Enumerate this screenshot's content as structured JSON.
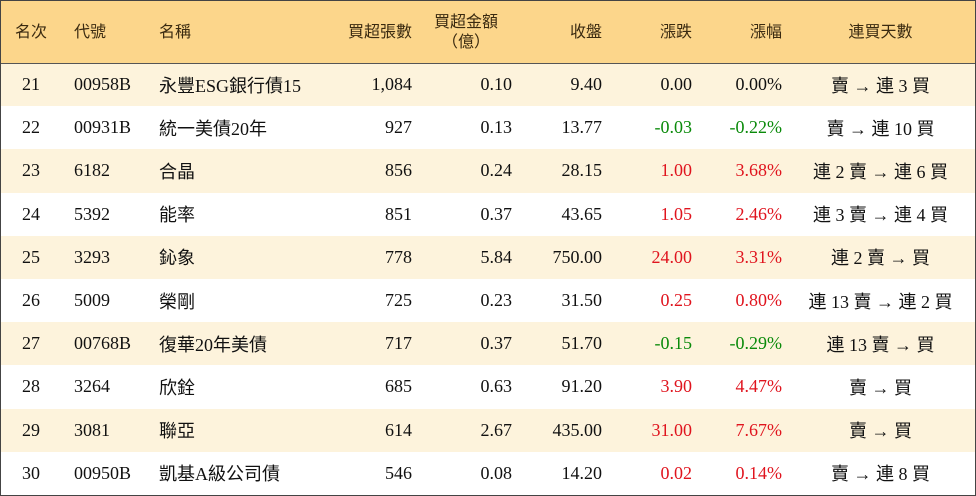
{
  "table": {
    "header": [
      "名次",
      "代號",
      "名稱",
      "買超張數",
      [
        "買超金額",
        "（億）"
      ],
      "收盤",
      "漲跌",
      "漲幅",
      "連買天數"
    ],
    "rows": [
      [
        "21",
        "00958B",
        "永豐ESG銀行債15",
        "1,084",
        "0.10",
        "9.40",
        "0.00",
        "0.00%",
        "賣 → 連 3 買"
      ],
      [
        "22",
        "00931B",
        "統一美債20年",
        "927",
        "0.13",
        "13.77",
        "-0.03",
        "-0.22%",
        "賣 → 連 10 買"
      ],
      [
        "23",
        "6182",
        "合晶",
        "856",
        "0.24",
        "28.15",
        "1.00",
        "3.68%",
        "連 2 賣 → 連 6 買"
      ],
      [
        "24",
        "5392",
        "能率",
        "851",
        "0.37",
        "43.65",
        "1.05",
        "2.46%",
        "連 3 賣 → 連 4 買"
      ],
      [
        "25",
        "3293",
        "鈊象",
        "778",
        "5.84",
        "750.00",
        "24.00",
        "3.31%",
        "連 2 賣 → 買"
      ],
      [
        "26",
        "5009",
        "榮剛",
        "725",
        "0.23",
        "31.50",
        "0.25",
        "0.80%",
        "連 13 賣 → 連 2 買"
      ],
      [
        "27",
        "00768B",
        "復華20年美債",
        "717",
        "0.37",
        "51.70",
        "-0.15",
        "-0.29%",
        "連 13 賣 → 買"
      ],
      [
        "28",
        "3264",
        "欣銓",
        "685",
        "0.63",
        "91.20",
        "3.90",
        "4.47%",
        "賣 → 買"
      ],
      [
        "29",
        "3081",
        "聯亞",
        "614",
        "2.67",
        "435.00",
        "31.00",
        "7.67%",
        "賣 → 買"
      ],
      [
        "30",
        "00950B",
        "凱基A級公司債",
        "546",
        "0.08",
        "14.20",
        "0.02",
        "0.14%",
        "賣 → 連 8 買"
      ]
    ]
  }
}
